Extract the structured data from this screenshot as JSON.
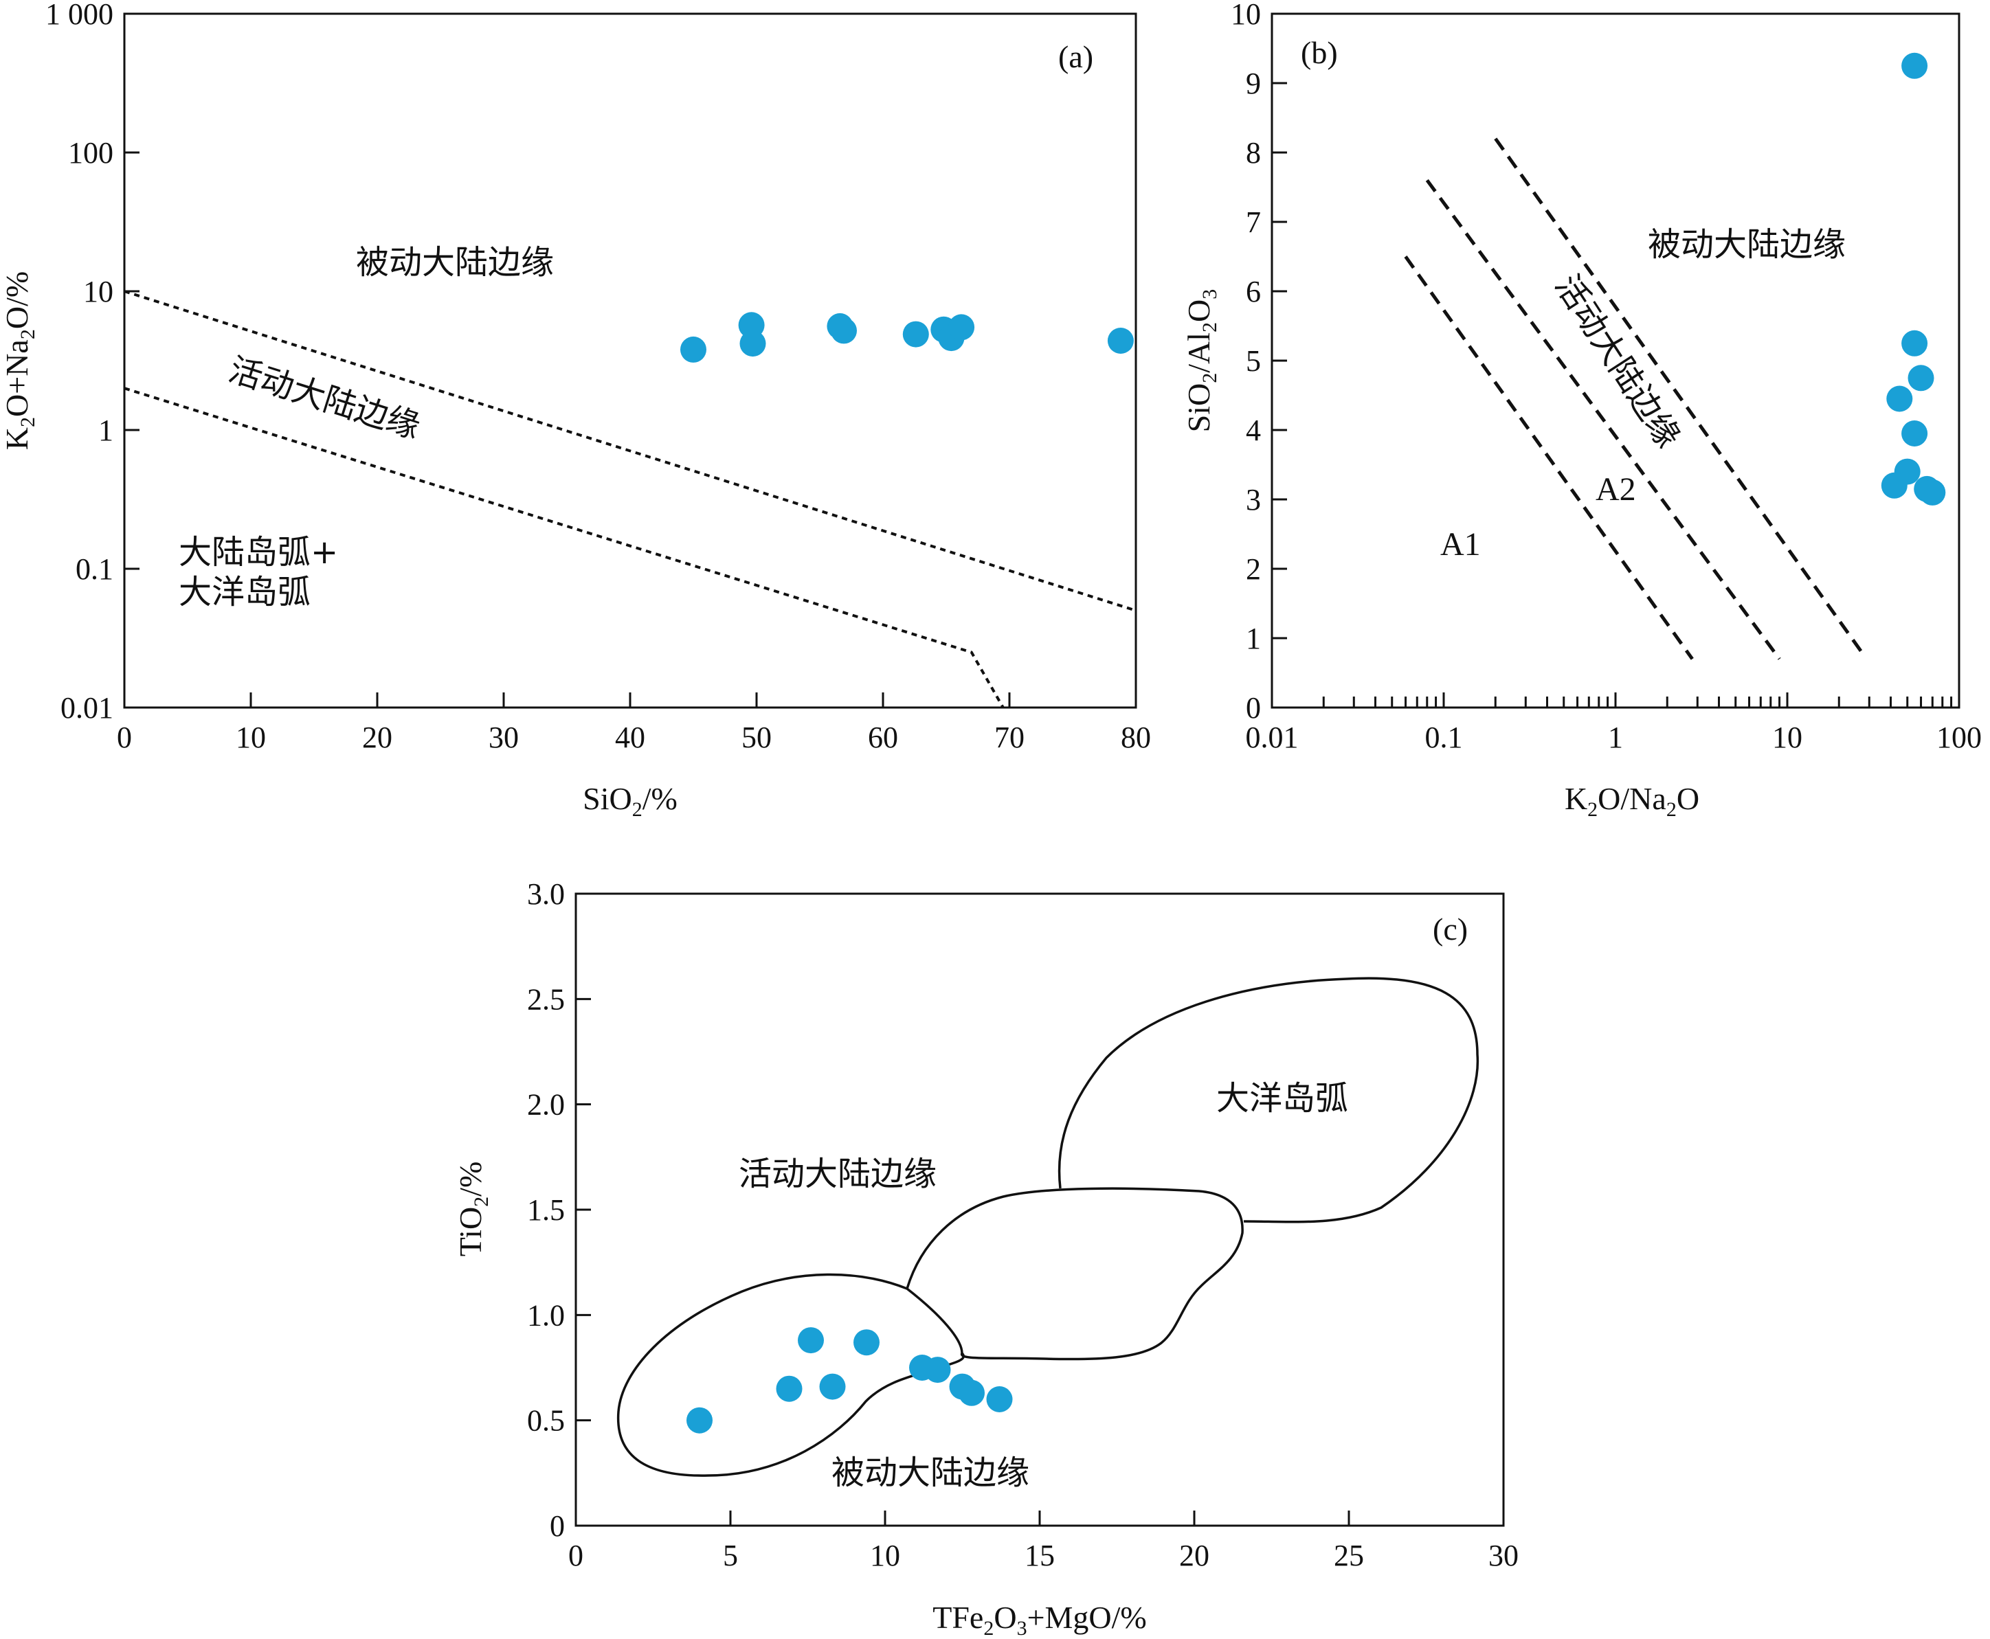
{
  "colors": {
    "point": "#1aa0d6",
    "line": "#111111"
  },
  "chart_data": [
    {
      "panel": "(a)",
      "type": "scatter",
      "xlabel": "SiO2/%",
      "ylabel": "K2O+Na2O/%",
      "xscale": "linear",
      "yscale": "log",
      "xlim": [
        0,
        80
      ],
      "ylim": [
        0.01,
        1000
      ],
      "xticks": [
        "0",
        "10",
        "20",
        "30",
        "40",
        "50",
        "60",
        "70",
        "80"
      ],
      "yticks": [
        "0.01",
        "0.1",
        "1",
        "10",
        "100",
        "1 000"
      ],
      "regions": [
        "被动大陆边缘",
        "活动大陆边缘",
        "大陆岛弧+",
        "大洋岛弧"
      ],
      "boundaries": [
        {
          "style": "dotted",
          "points": [
            [
              0,
              10
            ],
            [
              80,
              0.05
            ]
          ]
        },
        {
          "style": "dotted",
          "points": [
            [
              0,
              2
            ],
            [
              67,
              0.025
            ],
            [
              69.5,
              0.01
            ]
          ]
        }
      ],
      "x": [
        45,
        49.6,
        49.7,
        56.6,
        56.9,
        62.6,
        64.8,
        65.4,
        66.2,
        78.8
      ],
      "y": [
        3.8,
        5.7,
        4.2,
        5.6,
        5.2,
        4.9,
        5.3,
        4.6,
        5.5,
        4.4
      ]
    },
    {
      "panel": "(b)",
      "type": "scatter",
      "xlabel": "K2O/Na2O",
      "ylabel": "SiO2/Al2O3",
      "xscale": "log",
      "yscale": "linear",
      "xlim": [
        0.01,
        100
      ],
      "ylim": [
        0,
        10
      ],
      "xticks": [
        "0.01",
        "0.1",
        "1",
        "10",
        "100"
      ],
      "yticks": [
        "0",
        "1",
        "2",
        "3",
        "4",
        "5",
        "6",
        "7",
        "8",
        "9",
        "10"
      ],
      "regions": [
        "被动大陆边缘",
        "活动大陆边缘",
        "A2",
        "A1"
      ],
      "boundaries": [
        {
          "style": "dashed",
          "points": [
            [
              0.06,
              6.5
            ],
            [
              2.8,
              0.7
            ]
          ]
        },
        {
          "style": "dashed",
          "points": [
            [
              0.08,
              7.6
            ],
            [
              9,
              0.7
            ]
          ]
        },
        {
          "style": "dashed",
          "points": [
            [
              0.2,
              8.2
            ],
            [
              28,
              0.75
            ]
          ]
        }
      ],
      "x": [
        55,
        55,
        60,
        45,
        55,
        50,
        42,
        65,
        70
      ],
      "y": [
        9.25,
        5.25,
        4.75,
        4.45,
        3.95,
        3.4,
        3.2,
        3.15,
        3.1
      ]
    },
    {
      "panel": "(c)",
      "type": "scatter",
      "xlabel": "TFe2O3+MgO/%",
      "ylabel": "TiO2/%",
      "xscale": "linear",
      "yscale": "linear",
      "xlim": [
        0,
        30
      ],
      "ylim": [
        0,
        3.0
      ],
      "xticks": [
        "0",
        "5",
        "10",
        "15",
        "20",
        "25",
        "30"
      ],
      "yticks": [
        "0",
        "0.5",
        "1.0",
        "1.5",
        "2.0",
        "2.5",
        "3.0"
      ],
      "regions": [
        "大洋岛弧",
        "活动大陆边缘",
        "被动大陆边缘"
      ],
      "x": [
        4.0,
        7.6,
        9.4,
        6.9,
        8.3,
        11.2,
        11.7,
        12.5,
        12.8,
        13.7
      ],
      "y": [
        0.5,
        0.88,
        0.87,
        0.65,
        0.66,
        0.75,
        0.74,
        0.66,
        0.63,
        0.6
      ]
    }
  ]
}
